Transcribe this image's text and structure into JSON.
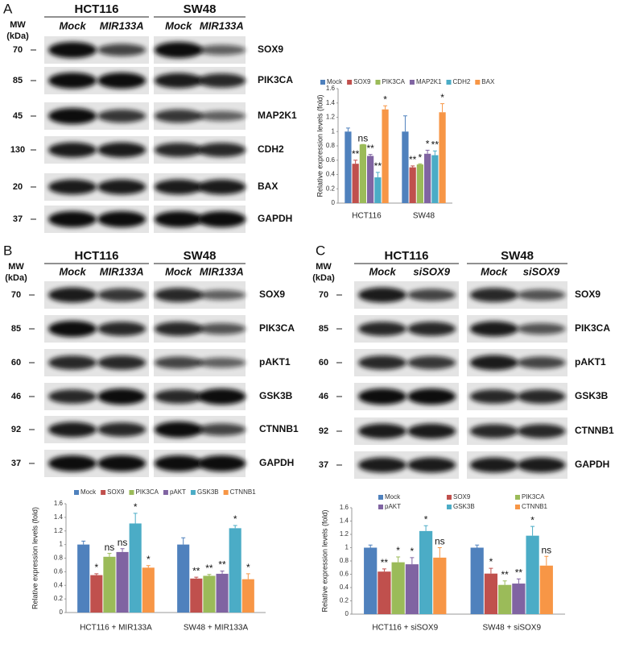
{
  "panels": [
    {
      "label": "A",
      "mw_header": "MW",
      "mw_unit": "(kDa)",
      "groups": [
        "HCT116",
        "SW48"
      ],
      "lanes": [
        "Mock",
        "MIR133A",
        "Mock",
        "MIR133A"
      ],
      "markers": [
        70,
        85,
        45,
        130,
        20,
        37
      ],
      "proteins": [
        "SOX9",
        "PIK3CA",
        "MAP2K1",
        "CDH2",
        "BAX",
        "GAPDH"
      ]
    },
    {
      "label": "B",
      "mw_header": "MW",
      "mw_unit": "(kDa)",
      "groups": [
        "HCT116",
        "SW48"
      ],
      "lanes": [
        "Mock",
        "MIR133A",
        "Mock",
        "MIR133A"
      ],
      "markers": [
        70,
        85,
        60,
        46,
        92,
        37
      ],
      "proteins": [
        "SOX9",
        "PIK3CA",
        "pAKT1",
        "GSK3B",
        "CTNNB1",
        "GAPDH"
      ]
    },
    {
      "label": "C",
      "mw_header": "MW",
      "mw_unit": "(kDa)",
      "groups": [
        "HCT116",
        "SW48"
      ],
      "lanes": [
        "Mock",
        "siSOX9",
        "Mock",
        "siSOX9"
      ],
      "markers": [
        70,
        85,
        60,
        46,
        92,
        37
      ],
      "proteins": [
        "SOX9",
        "PIK3CA",
        "pAKT1",
        "GSK3B",
        "CTNNB1",
        "GAPDH"
      ]
    }
  ],
  "chart_data": [
    {
      "type": "bar",
      "y_label": "Relative expression levels (fold)",
      "categories": [
        "HCT116",
        "SW48"
      ],
      "ylim": [
        0,
        1.6
      ],
      "yticks": [
        0,
        0.2,
        0.4,
        0.6,
        0.8,
        1,
        1.2,
        1.4,
        1.6
      ],
      "legend": "top",
      "series": [
        {
          "name": "Mock",
          "color": "#4f81bd",
          "values": [
            1.0,
            1.0
          ],
          "errors": [
            0.05,
            0.22
          ],
          "labels": [
            null,
            null
          ]
        },
        {
          "name": "SOX9",
          "color": "#c0504d",
          "values": [
            0.55,
            0.5
          ],
          "errors": [
            0.05,
            0.02
          ],
          "labels": [
            "**",
            "**"
          ]
        },
        {
          "name": "PIK3CA",
          "color": "#9bbb59",
          "values": [
            0.82,
            0.54
          ],
          "errors": [
            0.0,
            0.01
          ],
          "labels": [
            "ns",
            "*"
          ]
        },
        {
          "name": "MAP2K1",
          "color": "#8064a2",
          "values": [
            0.66,
            0.69
          ],
          "errors": [
            0.02,
            0.05
          ],
          "labels": [
            "**",
            "*"
          ]
        },
        {
          "name": "CDH2",
          "color": "#4bacc6",
          "values": [
            0.36,
            0.67
          ],
          "errors": [
            0.07,
            0.06
          ],
          "labels": [
            "**",
            "**"
          ]
        },
        {
          "name": "BAX",
          "color": "#f79646",
          "values": [
            1.31,
            1.27
          ],
          "errors": [
            0.05,
            0.12
          ],
          "labels": [
            "*",
            "*"
          ]
        }
      ]
    },
    {
      "type": "bar",
      "y_label": "Relative expression levels (fold)",
      "categories": [
        "HCT116 + MIR133A",
        "SW48 + MIR133A"
      ],
      "ylim": [
        0,
        1.6
      ],
      "yticks": [
        0,
        0.2,
        0.4,
        0.6,
        0.8,
        1,
        1.2,
        1.4,
        1.6
      ],
      "legend": "top",
      "series": [
        {
          "name": "Mock",
          "color": "#4f81bd",
          "values": [
            1.0,
            1.0
          ],
          "errors": [
            0.05,
            0.1
          ],
          "labels": [
            null,
            null
          ]
        },
        {
          "name": "SOX9",
          "color": "#c0504d",
          "values": [
            0.55,
            0.5
          ],
          "errors": [
            0.02,
            0.02
          ],
          "labels": [
            "*",
            "**"
          ]
        },
        {
          "name": "PIK3CA",
          "color": "#9bbb59",
          "values": [
            0.82,
            0.54
          ],
          "errors": [
            0.05,
            0.02
          ],
          "labels": [
            "ns",
            "**"
          ]
        },
        {
          "name": "pAKT",
          "color": "#8064a2",
          "values": [
            0.89,
            0.57
          ],
          "errors": [
            0.05,
            0.04
          ],
          "labels": [
            "ns",
            "**"
          ]
        },
        {
          "name": "GSK3B",
          "color": "#4bacc6",
          "values": [
            1.31,
            1.24
          ],
          "errors": [
            0.15,
            0.04
          ],
          "labels": [
            "*",
            "*"
          ]
        },
        {
          "name": "CTNNB1",
          "color": "#f79646",
          "values": [
            0.66,
            0.49
          ],
          "errors": [
            0.03,
            0.08
          ],
          "labels": [
            "*",
            "*"
          ]
        }
      ]
    },
    {
      "type": "bar",
      "y_label": "Relative expression levels (fold)",
      "categories": [
        "HCT116 + siSOX9",
        "SW48 + siSOX9"
      ],
      "ylim": [
        0,
        1.6
      ],
      "yticks": [
        0,
        0.2,
        0.4,
        0.6,
        0.8,
        1,
        1.2,
        1.4,
        1.6
      ],
      "legend": "top",
      "series": [
        {
          "name": "Mock",
          "color": "#4f81bd",
          "values": [
            1.0,
            1.0
          ],
          "errors": [
            0.04,
            0.04
          ],
          "labels": [
            null,
            null
          ]
        },
        {
          "name": "SOX9",
          "color": "#c0504d",
          "values": [
            0.64,
            0.61
          ],
          "errors": [
            0.04,
            0.08
          ],
          "labels": [
            "**",
            "*"
          ]
        },
        {
          "name": "PIK3CA",
          "color": "#9bbb59",
          "values": [
            0.78,
            0.44
          ],
          "errors": [
            0.08,
            0.06
          ],
          "labels": [
            "*",
            "**"
          ]
        },
        {
          "name": "pAKT",
          "color": "#8064a2",
          "values": [
            0.75,
            0.46
          ],
          "errors": [
            0.1,
            0.07
          ],
          "labels": [
            "*",
            "**"
          ]
        },
        {
          "name": "GSK3B",
          "color": "#4bacc6",
          "values": [
            1.25,
            1.18
          ],
          "errors": [
            0.08,
            0.14
          ],
          "labels": [
            "*",
            "*"
          ]
        },
        {
          "name": "CTNNB1",
          "color": "#f79646",
          "values": [
            0.85,
            0.73
          ],
          "errors": [
            0.15,
            0.14
          ],
          "labels": [
            "ns",
            "ns"
          ]
        }
      ]
    }
  ]
}
